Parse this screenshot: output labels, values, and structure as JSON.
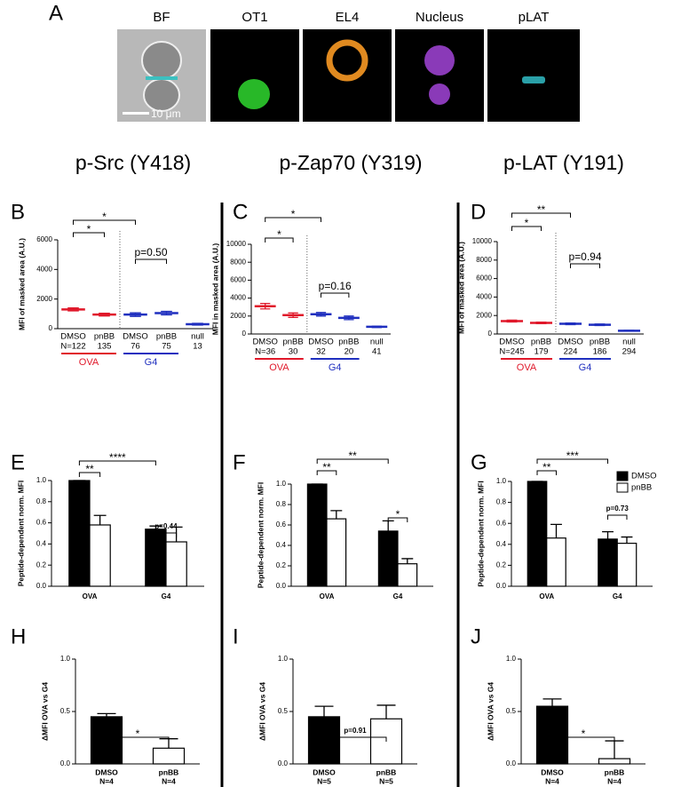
{
  "panel_a": {
    "letter": "A",
    "channels": [
      "BF",
      "OT1",
      "EL4",
      "Nucleus",
      "pLAT"
    ],
    "scale_bar": "10 μm"
  },
  "column_titles": [
    "p-Src (Y418)",
    "p-Zap70 (Y319)",
    "p-LAT (Y191)"
  ],
  "chart_data": [
    {
      "type": "dotplot",
      "panel": "B",
      "y_label": "MFI of masked area (A.U.)",
      "categories": [
        "DMSO",
        "pnBB",
        "DMSO",
        "pnBB",
        "null"
      ],
      "n_labels": [
        "N=122",
        "135",
        "76",
        "75",
        "13"
      ],
      "values": [
        1300,
        950,
        950,
        1050,
        300
      ],
      "errors": [
        100,
        90,
        120,
        120,
        60
      ],
      "colors": [
        "#e0182a",
        "#e0182a",
        "#1f2fbf",
        "#1f2fbf",
        "#1f2fbf"
      ],
      "groups": [
        {
          "name": "OVA",
          "color": "#e0182a"
        },
        {
          "name": "G4",
          "color": "#1f2fbf"
        }
      ],
      "ylim": [
        0,
        6000
      ],
      "yticks": [
        0,
        2000,
        4000,
        6000
      ],
      "annotations": [
        {
          "text": "*",
          "from": 0,
          "to": 2
        },
        {
          "text": "*",
          "from": 0,
          "to": 1
        },
        {
          "text": "p=0.50",
          "from": 2,
          "to": 3
        }
      ]
    },
    {
      "type": "dotplot",
      "panel": "C",
      "y_label": "MFI in masked area (A.U.)",
      "categories": [
        "DMSO",
        "pnBB",
        "DMSO",
        "pnBB",
        "null"
      ],
      "n_labels": [
        "N=36",
        "30",
        "32",
        "20",
        "41"
      ],
      "values": [
        3100,
        2100,
        2200,
        1800,
        800
      ],
      "errors": [
        300,
        250,
        200,
        200,
        80
      ],
      "colors": [
        "#e0182a",
        "#e0182a",
        "#1f2fbf",
        "#1f2fbf",
        "#1f2fbf"
      ],
      "groups": [
        {
          "name": "OVA",
          "color": "#e0182a"
        },
        {
          "name": "G4",
          "color": "#1f2fbf"
        }
      ],
      "ylim": [
        0,
        10000
      ],
      "yticks": [
        0,
        2000,
        4000,
        6000,
        8000,
        10000
      ],
      "annotations": [
        {
          "text": "*",
          "from": 0,
          "to": 2
        },
        {
          "text": "*",
          "from": 0,
          "to": 1
        },
        {
          "text": "p=0.16",
          "from": 2,
          "to": 3
        }
      ]
    },
    {
      "type": "dotplot",
      "panel": "D",
      "y_label": "MFI of masked area (A.U.)",
      "categories": [
        "DMSO",
        "pnBB",
        "DMSO",
        "pnBB",
        "null"
      ],
      "n_labels": [
        "N=245",
        "179",
        "224",
        "186",
        "294"
      ],
      "values": [
        1400,
        1200,
        1100,
        1000,
        350
      ],
      "errors": [
        100,
        80,
        90,
        80,
        40
      ],
      "colors": [
        "#e0182a",
        "#e0182a",
        "#1f2fbf",
        "#1f2fbf",
        "#1f2fbf"
      ],
      "groups": [
        {
          "name": "OVA",
          "color": "#e0182a"
        },
        {
          "name": "G4",
          "color": "#1f2fbf"
        }
      ],
      "ylim": [
        0,
        10000
      ],
      "yticks": [
        0,
        2000,
        4000,
        6000,
        8000,
        10000
      ],
      "annotations": [
        {
          "text": "**",
          "from": 0,
          "to": 2
        },
        {
          "text": "*",
          "from": 0,
          "to": 1
        },
        {
          "text": "p=0.94",
          "from": 2,
          "to": 3
        }
      ]
    },
    {
      "type": "bar",
      "panel": "E",
      "y_label": "Peptide-dependent norm. MFI",
      "categories": [
        "OVA",
        "G4"
      ],
      "series": [
        {
          "color": "#000000",
          "values": [
            1.0,
            0.54
          ],
          "errors": [
            0,
            0.03
          ]
        },
        {
          "color": "#ffffff",
          "values": [
            0.58,
            0.42
          ],
          "errors": [
            0.09,
            0.14
          ]
        }
      ],
      "ylim": [
        0,
        1.0
      ],
      "yticks": [
        {
          "value": 0,
          "label": "0.0"
        },
        0.2,
        0.4,
        0.6,
        0.8,
        {
          "value": 1,
          "label": "1.0"
        }
      ],
      "annotations": [
        {
          "text": "**",
          "from": 0,
          "to": 1
        },
        {
          "text": "****",
          "from": 0,
          "to": 2
        },
        {
          "text": "p=0.44",
          "from": 2,
          "to": 3
        }
      ]
    },
    {
      "type": "bar",
      "panel": "F",
      "y_label": "Peptide-dependent norm. MFI",
      "categories": [
        "OVA",
        "G4"
      ],
      "series": [
        {
          "color": "#000000",
          "values": [
            1.0,
            0.54
          ],
          "errors": [
            0,
            0.1
          ]
        },
        {
          "color": "#ffffff",
          "values": [
            0.66,
            0.22
          ],
          "errors": [
            0.08,
            0.05
          ]
        }
      ],
      "ylim": [
        0,
        1.0
      ],
      "yticks": [
        {
          "value": 0,
          "label": "0.0"
        },
        0.2,
        0.4,
        0.6,
        0.8,
        {
          "value": 1,
          "label": "1.0"
        }
      ],
      "annotations": [
        {
          "text": "**",
          "from": 0,
          "to": 1
        },
        {
          "text": "**",
          "from": 0,
          "to": 2
        },
        {
          "text": "*",
          "from": 2,
          "to": 3
        }
      ]
    },
    {
      "type": "bar",
      "panel": "G",
      "y_label": "Peptide-dependent norm. MFI",
      "categories": [
        "OVA",
        "G4"
      ],
      "series": [
        {
          "name": "DMSO",
          "color": "#000000",
          "values": [
            1.0,
            0.45
          ],
          "errors": [
            0,
            0.07
          ]
        },
        {
          "name": "pnBB",
          "color": "#ffffff",
          "values": [
            0.46,
            0.41
          ],
          "errors": [
            0.13,
            0.06
          ]
        }
      ],
      "ylim": [
        0,
        1.0
      ],
      "yticks": [
        {
          "value": 0,
          "label": "0.0"
        },
        0.2,
        0.4,
        0.6,
        0.8,
        {
          "value": 1,
          "label": "1.0"
        }
      ],
      "legend": "upper right",
      "annotations": [
        {
          "text": "**",
          "from": 0,
          "to": 1
        },
        {
          "text": "***",
          "from": 0,
          "to": 2
        },
        {
          "text": "p=0.73",
          "from": 2,
          "to": 3
        }
      ]
    },
    {
      "type": "bar",
      "panel": "H",
      "y_label": "ΔMFI OVA vs G4",
      "categories": [
        "DMSO",
        "pnBB"
      ],
      "n_labels": [
        "N=4",
        "N=4"
      ],
      "values": [
        0.45,
        0.15
      ],
      "errors": [
        0.03,
        0.09
      ],
      "colors": [
        "#000000",
        "#ffffff"
      ],
      "ylim": [
        0,
        1.0
      ],
      "yticks": [
        {
          "value": 0,
          "label": "0.0"
        },
        0.5,
        {
          "value": 1,
          "label": "1.0"
        }
      ],
      "annotations": [
        {
          "text": "*",
          "from": 0,
          "to": 1
        }
      ]
    },
    {
      "type": "bar",
      "panel": "I",
      "y_label": "ΔMFI OVA vs G4",
      "categories": [
        "DMSO",
        "pnBB"
      ],
      "n_labels": [
        "N=5",
        "N=5"
      ],
      "values": [
        0.45,
        0.43
      ],
      "errors": [
        0.1,
        0.13
      ],
      "colors": [
        "#000000",
        "#ffffff"
      ],
      "ylim": [
        0,
        1.0
      ],
      "yticks": [
        {
          "value": 0,
          "label": "0.0"
        },
        0.5,
        {
          "value": 1,
          "label": "1.0"
        }
      ],
      "annotations": [
        {
          "text": "p=0.91",
          "from": 0,
          "to": 1
        }
      ]
    },
    {
      "type": "bar",
      "panel": "J",
      "y_label": "ΔMFI OVA vs G4",
      "categories": [
        "DMSO",
        "pnBB"
      ],
      "n_labels": [
        "N=4",
        "N=4"
      ],
      "values": [
        0.55,
        0.05
      ],
      "errors": [
        0.07,
        0.17
      ],
      "colors": [
        "#000000",
        "#ffffff"
      ],
      "ylim": [
        0,
        1.0
      ],
      "yticks": [
        {
          "value": 0,
          "label": "0.0"
        },
        0.5,
        {
          "value": 1,
          "label": "1.0"
        }
      ],
      "annotations": [
        {
          "text": "*",
          "from": 0,
          "to": 1
        }
      ]
    }
  ]
}
